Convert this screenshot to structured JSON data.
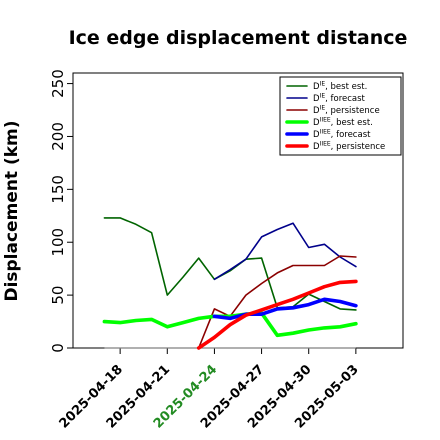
{
  "chart_data": {
    "type": "line",
    "title": "Ice edge displacement distance",
    "ylabel": "Displacement (km)",
    "xlabel": "",
    "xlim": [
      "2025-04-15",
      "2025-05-06"
    ],
    "ylim": [
      0,
      260
    ],
    "yticks": [
      0,
      50,
      100,
      150,
      200,
      250
    ],
    "xticks": [
      {
        "date": "2025-04-18",
        "label": "2025-04-18",
        "color": "#000000"
      },
      {
        "date": "2025-04-21",
        "label": "2025-04-21",
        "color": "#000000"
      },
      {
        "date": "2025-04-24",
        "label": "2025-04-24",
        "color": "#228b22"
      },
      {
        "date": "2025-04-27",
        "label": "2025-04-27",
        "color": "#000000"
      },
      {
        "date": "2025-04-30",
        "label": "2025-04-30",
        "color": "#000000"
      },
      {
        "date": "2025-05-03",
        "label": "2025-05-03",
        "color": "#000000"
      }
    ],
    "hline": 0,
    "grid": false,
    "legend": "top-right",
    "series": [
      {
        "name": "D^IE, best est.",
        "legend_main": "D",
        "legend_sup": "IE",
        "legend_rest": ", best est.",
        "color": "#006400",
        "width": 1.6,
        "x": [
          "2025-04-17",
          "2025-04-18",
          "2025-04-19",
          "2025-04-20",
          "2025-04-21",
          "2025-04-22",
          "2025-04-23",
          "2025-04-24",
          "2025-04-25",
          "2025-04-26",
          "2025-04-27",
          "2025-04-28",
          "2025-04-29",
          "2025-04-30",
          "2025-05-01",
          "2025-05-02",
          "2025-05-03"
        ],
        "y": [
          123,
          123,
          117,
          109,
          50,
          67,
          85,
          65,
          73,
          84,
          85,
          38,
          39,
          51,
          44,
          37,
          36
        ]
      },
      {
        "name": "D^IE, forecast",
        "legend_main": "D",
        "legend_sup": "IE",
        "legend_rest": ", forecast",
        "color": "#00008b",
        "width": 1.6,
        "x": [
          "2025-04-24",
          "2025-04-25",
          "2025-04-26",
          "2025-04-27",
          "2025-04-28",
          "2025-04-29",
          "2025-04-30",
          "2025-05-01",
          "2025-05-02",
          "2025-05-03"
        ],
        "y": [
          65,
          74,
          84,
          105,
          112,
          118,
          95,
          98,
          86,
          77
        ]
      },
      {
        "name": "D^IE, persistence",
        "legend_main": "D",
        "legend_sup": "IE",
        "legend_rest": ", persistence",
        "color": "#8b0000",
        "width": 1.6,
        "x": [
          "2025-04-23",
          "2025-04-24",
          "2025-04-25",
          "2025-04-26",
          "2025-04-27",
          "2025-04-28",
          "2025-04-29",
          "2025-04-30",
          "2025-05-01",
          "2025-05-02",
          "2025-05-03"
        ],
        "y": [
          0,
          37,
          30,
          50,
          61,
          71,
          78,
          78,
          78,
          87,
          86
        ]
      },
      {
        "name": "D^IIEE, best est.",
        "legend_main": "D",
        "legend_sup": "IIEE",
        "legend_rest": ", best est.",
        "color": "#00ff00",
        "width": 3.6,
        "x": [
          "2025-04-17",
          "2025-04-18",
          "2025-04-19",
          "2025-04-20",
          "2025-04-21",
          "2025-04-22",
          "2025-04-23",
          "2025-04-24",
          "2025-04-25",
          "2025-04-26",
          "2025-04-27",
          "2025-04-28",
          "2025-04-29",
          "2025-04-30",
          "2025-05-01",
          "2025-05-02",
          "2025-05-03"
        ],
        "y": [
          25,
          24,
          26,
          27,
          20,
          24,
          28,
          30,
          30,
          32,
          33,
          12,
          14,
          17,
          19,
          20,
          23
        ]
      },
      {
        "name": "D^IIEE, forecast",
        "legend_main": "D",
        "legend_sup": "IIEE",
        "legend_rest": ", forecast",
        "color": "#0000ff",
        "width": 3.6,
        "x": [
          "2025-04-24",
          "2025-04-25",
          "2025-04-26",
          "2025-04-27",
          "2025-04-28",
          "2025-04-29",
          "2025-04-30",
          "2025-05-01",
          "2025-05-02",
          "2025-05-03"
        ],
        "y": [
          30,
          28,
          32,
          32,
          37,
          38,
          41,
          46,
          44,
          40
        ]
      },
      {
        "name": "D^IIEE, persistence",
        "legend_main": "D",
        "legend_sup": "IIEE",
        "legend_rest": ", persistence",
        "color": "#ff0000",
        "width": 3.6,
        "x": [
          "2025-04-23",
          "2025-04-24",
          "2025-04-25",
          "2025-04-26",
          "2025-04-27",
          "2025-04-28",
          "2025-04-29",
          "2025-04-30",
          "2025-05-01",
          "2025-05-02",
          "2025-05-03"
        ],
        "y": [
          0,
          10,
          22,
          31,
          36,
          41,
          46,
          52,
          58,
          62,
          63
        ]
      }
    ]
  }
}
